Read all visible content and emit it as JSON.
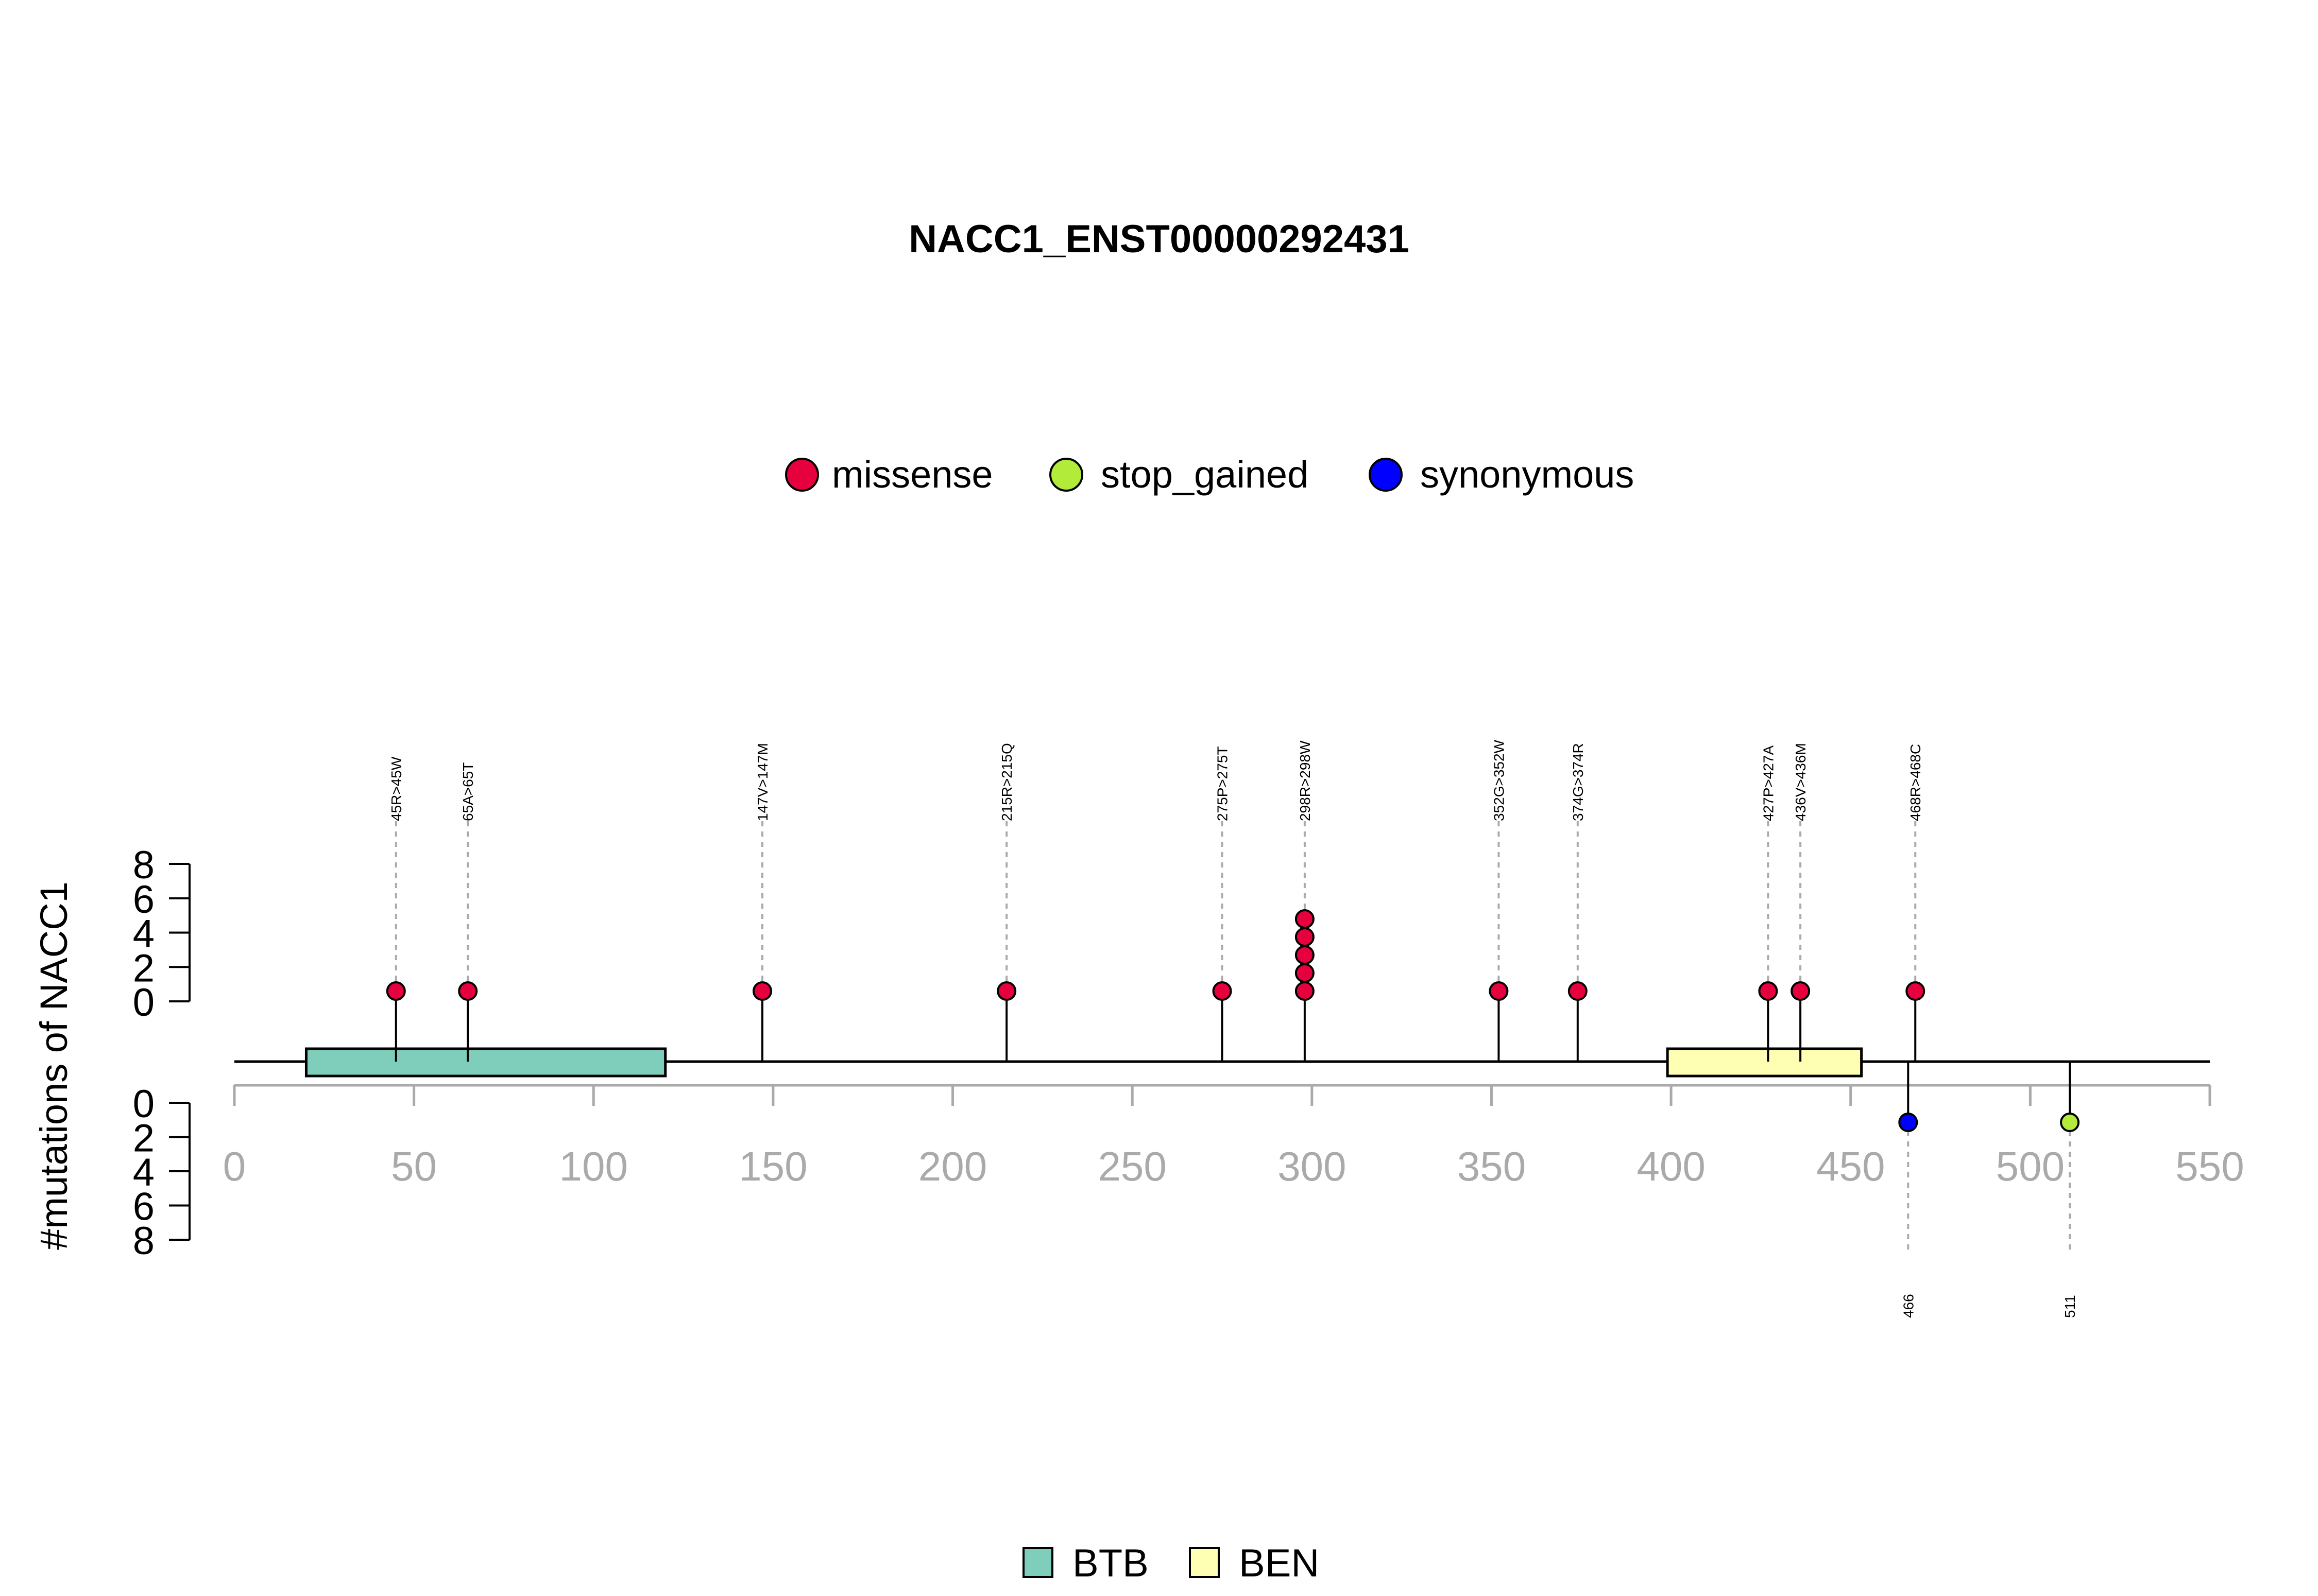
{
  "chart_data": {
    "type": "lollipop",
    "title": "NACC1_ENST00000292431",
    "ylabel": "#mutations of NACC1",
    "xlim": [
      0,
      550
    ],
    "x_ticks": [
      "0",
      "50",
      "100",
      "150",
      "200",
      "250",
      "300",
      "350",
      "400",
      "450",
      "500",
      "550"
    ],
    "ylim_top": [
      0,
      8
    ],
    "ylim_bottom": [
      0,
      8
    ],
    "y_ticks_top": [
      "0",
      "2",
      "4",
      "6",
      "8"
    ],
    "y_ticks_bottom": [
      "0",
      "2",
      "4",
      "6",
      "8"
    ],
    "legend_top": [
      {
        "label": "missense",
        "color": "#E6003D"
      },
      {
        "label": "stop_gained",
        "color": "#B3EB3A"
      },
      {
        "label": "synonymous",
        "color": "#0000FF"
      }
    ],
    "legend_bottom": [
      {
        "label": "BTB",
        "color": "#7FCDBB"
      },
      {
        "label": "BEN",
        "color": "#FFFFB3"
      }
    ],
    "domains": [
      {
        "name": "BTB",
        "start": 20,
        "end": 120,
        "color": "#7FCDBB"
      },
      {
        "name": "BEN",
        "start": 399,
        "end": 453,
        "color": "#FFFFB3"
      }
    ],
    "mutations_top": [
      {
        "pos": 45,
        "count": 1,
        "label": "45R>45W",
        "type": "missense"
      },
      {
        "pos": 65,
        "count": 1,
        "label": "65A>65T",
        "type": "missense"
      },
      {
        "pos": 147,
        "count": 1,
        "label": "147V>147M",
        "type": "missense"
      },
      {
        "pos": 215,
        "count": 1,
        "label": "215R>215Q",
        "type": "missense"
      },
      {
        "pos": 275,
        "count": 1,
        "label": "275P>275T",
        "type": "missense"
      },
      {
        "pos": 298,
        "count": 5,
        "label": "298R>298W",
        "type": "missense"
      },
      {
        "pos": 352,
        "count": 1,
        "label": "352G>352W",
        "type": "missense"
      },
      {
        "pos": 374,
        "count": 1,
        "label": "374G>374R",
        "type": "missense"
      },
      {
        "pos": 427,
        "count": 1,
        "label": "427P>427A",
        "type": "missense"
      },
      {
        "pos": 436,
        "count": 1,
        "label": "436V>436M",
        "type": "missense"
      },
      {
        "pos": 468,
        "count": 1,
        "label": "468R>468C",
        "type": "missense"
      }
    ],
    "mutations_bottom": [
      {
        "pos": 466,
        "count": 1,
        "label": "466",
        "type": "synonymous"
      },
      {
        "pos": 511,
        "count": 1,
        "label": "511",
        "type": "stop_gained"
      }
    ]
  }
}
